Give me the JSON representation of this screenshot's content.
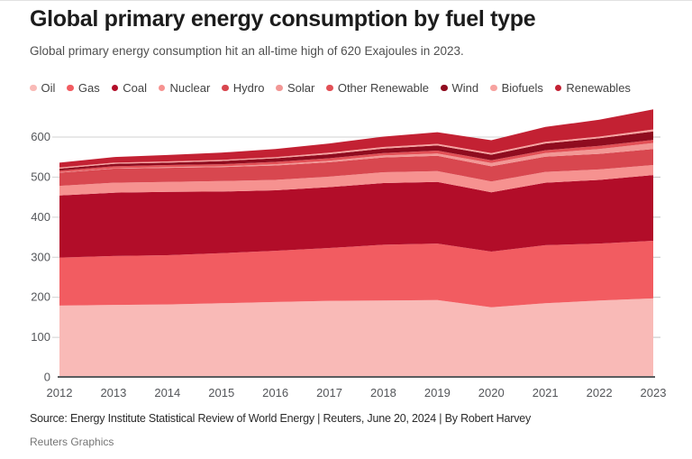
{
  "header": {
    "title": "Global primary energy consumption by fuel type",
    "subtitle": "Global primary energy consumption hit an all-time high of 620 Exajoules in 2023."
  },
  "footer": {
    "source": "Source: Energy Institute Statistical Review of World Energy | Reuters, June 20, 2024 | By Robert Harvey",
    "credit": "Reuters Graphics"
  },
  "colors": {
    "axis_line": "#5a5c5f",
    "gridline": "#d2d2d2",
    "tick": "#c2c2c2",
    "tick_label": "#54565a"
  },
  "chart_data": {
    "type": "area",
    "stacked": true,
    "title": "Global primary energy consumption by fuel type",
    "unit": "Exajoules",
    "xlabel": "",
    "ylabel": "",
    "x": [
      2012,
      2013,
      2014,
      2015,
      2016,
      2017,
      2018,
      2019,
      2020,
      2021,
      2022,
      2023
    ],
    "yticks": [
      0,
      100,
      200,
      300,
      400,
      500,
      600
    ],
    "ylim": [
      0,
      675
    ],
    "grid": "top gridline visible at 600; short ticks both sides",
    "legend_position": "top",
    "series": [
      {
        "name": "Oil",
        "color": "#f9bab7",
        "values": [
          178,
          180,
          181,
          184,
          187,
          190,
          191,
          192,
          174,
          184,
          191,
          196
        ]
      },
      {
        "name": "Gas",
        "color": "#f25c61",
        "values": [
          120,
          122,
          123,
          125,
          128,
          132,
          139,
          141,
          139,
          145,
          142,
          144
        ]
      },
      {
        "name": "Coal",
        "color": "#b20d29",
        "values": [
          155,
          158,
          158,
          154,
          151,
          152,
          154,
          154,
          148,
          156,
          159,
          164
        ]
      },
      {
        "name": "Nuclear",
        "color": "#f69290",
        "values": [
          24,
          25,
          25,
          26,
          26,
          26,
          27,
          27,
          27,
          27,
          26,
          25
        ]
      },
      {
        "name": "Hydro",
        "color": "#d8474f",
        "values": [
          33,
          35,
          35,
          35,
          36,
          36,
          37,
          38,
          38,
          38,
          39,
          40
        ]
      },
      {
        "name": "Solar",
        "color": "#f29795",
        "values": [
          1,
          1,
          2,
          2,
          3,
          4,
          5,
          6,
          8,
          9,
          12,
          15
        ]
      },
      {
        "name": "Other Renewable",
        "color": "#e25056",
        "values": [
          4,
          5,
          5,
          5,
          6,
          6,
          6,
          7,
          7,
          7,
          8,
          8
        ]
      },
      {
        "name": "Wind",
        "color": "#8f0c1f",
        "values": [
          5,
          6,
          6,
          8,
          9,
          10,
          11,
          13,
          14,
          17,
          19,
          21
        ]
      },
      {
        "name": "Biofuels",
        "color": "#f7a3a0",
        "values": [
          3,
          3,
          3,
          3,
          3,
          4,
          4,
          4,
          4,
          4,
          4,
          5
        ]
      },
      {
        "name": "Renewables",
        "color": "#c32133",
        "values": [
          12,
          14,
          16,
          18,
          20,
          23,
          26,
          29,
          32,
          37,
          42,
          50
        ]
      }
    ]
  }
}
